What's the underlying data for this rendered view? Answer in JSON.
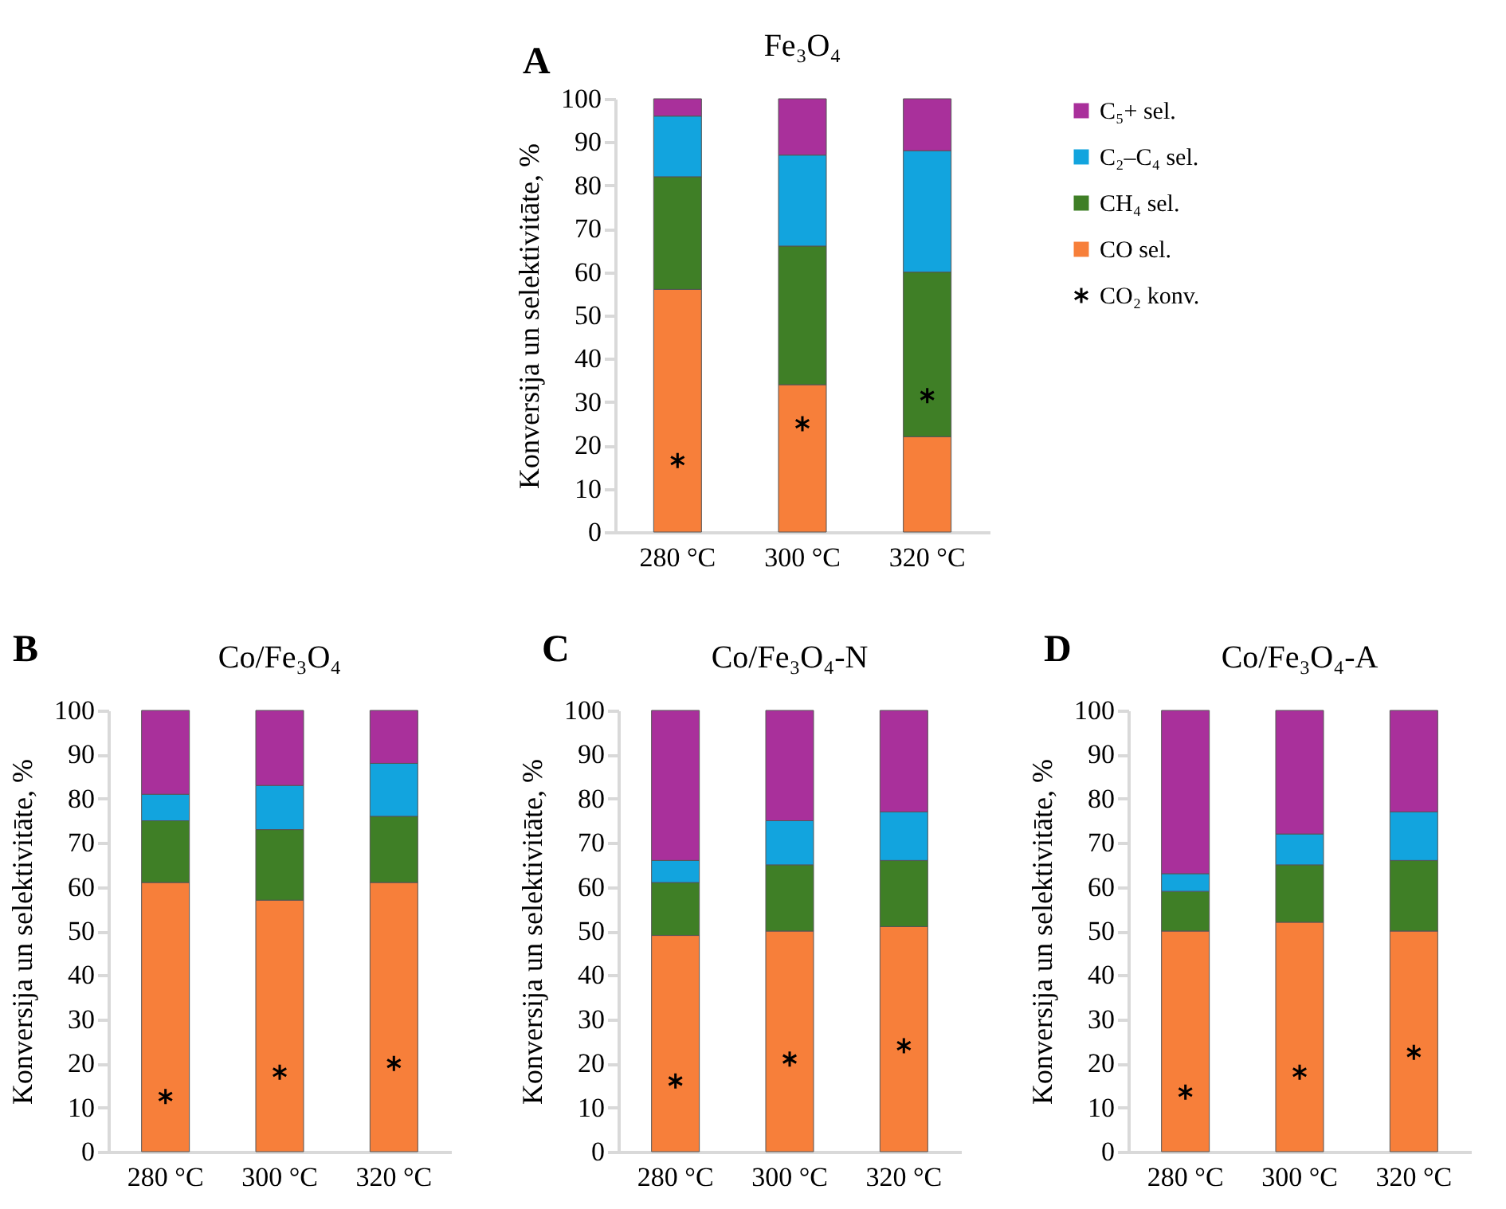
{
  "chart_data": [
    {
      "type": "bar",
      "stacked": true,
      "title": "Fe₃O₄",
      "ylabel": "Konversija un selektivitāte, %",
      "annotations": [
        "A"
      ],
      "categories": [
        "280 °C",
        "300 °C",
        "320 °C"
      ],
      "ylim": [
        0,
        100
      ],
      "yticks": [
        0,
        10,
        20,
        30,
        40,
        50,
        60,
        70,
        80,
        90,
        100
      ],
      "grid": false,
      "legend": "right",
      "marker": "cross",
      "series": [
        {
          "name": "CO sel.",
          "color": "#f77f3a",
          "values": [
            56,
            34,
            22
          ]
        },
        {
          "name": "CH₄ sel.",
          "color": "#3f7f26",
          "values": [
            26,
            32,
            38
          ]
        },
        {
          "name": "C₂–C₄ sel.",
          "color": "#12a4de",
          "values": [
            14,
            21,
            28
          ]
        },
        {
          "name": "C₅+ sel.",
          "color": "#a9309b",
          "values": [
            4,
            13,
            12
          ]
        },
        {
          "name": "CO₂ konv.",
          "type": "scatter",
          "color": "#000000",
          "values": [
            16.5,
            25,
            31.5
          ]
        }
      ]
    },
    {
      "type": "bar",
      "stacked": true,
      "title": "Co/Fe₃O₄",
      "ylabel": "Konversija un selektivitāte, %",
      "annotations": [
        "B"
      ],
      "categories": [
        "280 °C",
        "300 °C",
        "320 °C"
      ],
      "ylim": [
        0,
        100
      ],
      "yticks": [
        0,
        10,
        20,
        30,
        40,
        50,
        60,
        70,
        80,
        90,
        100
      ],
      "grid": false,
      "marker": "cross",
      "series": [
        {
          "color": "#f77f3a",
          "values": [
            61,
            57,
            61
          ]
        },
        {
          "color": "#3f7f26",
          "values": [
            14,
            16,
            15
          ]
        },
        {
          "color": "#12a4de",
          "values": [
            6,
            10,
            12
          ]
        },
        {
          "color": "#a9309b",
          "values": [
            19,
            17,
            12
          ]
        },
        {
          "type": "scatter",
          "color": "#000000",
          "values": [
            12.5,
            18,
            20
          ]
        }
      ]
    },
    {
      "type": "bar",
      "stacked": true,
      "title": "Co/Fe₃O₄-N",
      "ylabel": "Konversija un selektivitāte, %",
      "annotations": [
        "C"
      ],
      "categories": [
        "280 °C",
        "300 °C",
        "320 °C"
      ],
      "ylim": [
        0,
        100
      ],
      "yticks": [
        0,
        10,
        20,
        30,
        40,
        50,
        60,
        70,
        80,
        90,
        100
      ],
      "grid": false,
      "marker": "cross",
      "series": [
        {
          "color": "#f77f3a",
          "values": [
            49,
            50,
            51
          ]
        },
        {
          "color": "#3f7f26",
          "values": [
            12,
            15,
            15
          ]
        },
        {
          "color": "#12a4de",
          "values": [
            5,
            10,
            11
          ]
        },
        {
          "color": "#a9309b",
          "values": [
            34,
            25,
            23
          ]
        },
        {
          "type": "scatter",
          "color": "#000000",
          "values": [
            16,
            21,
            24
          ]
        }
      ]
    },
    {
      "type": "bar",
      "stacked": true,
      "title": "Co/Fe₃O₄-A",
      "ylabel": "Konversija un selektivitāte, %",
      "annotations": [
        "D"
      ],
      "categories": [
        "280 °C",
        "300 °C",
        "320 °C"
      ],
      "ylim": [
        0,
        100
      ],
      "yticks": [
        0,
        10,
        20,
        30,
        40,
        50,
        60,
        70,
        80,
        90,
        100
      ],
      "grid": false,
      "marker": "cross",
      "series": [
        {
          "color": "#f77f3a",
          "values": [
            50,
            52,
            50
          ]
        },
        {
          "color": "#3f7f26",
          "values": [
            9,
            13,
            16
          ]
        },
        {
          "color": "#12a4de",
          "values": [
            4,
            7,
            11
          ]
        },
        {
          "color": "#a9309b",
          "values": [
            37,
            28,
            23
          ]
        },
        {
          "type": "scatter",
          "color": "#000000",
          "values": [
            13.5,
            18,
            22.5
          ]
        }
      ]
    }
  ]
}
